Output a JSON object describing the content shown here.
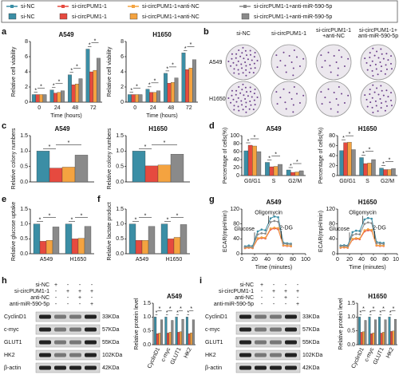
{
  "legend": [
    {
      "name": "si-NC",
      "color": "#3b8ea5"
    },
    {
      "name": "si-circPUM1-1",
      "color": "#e64a3f"
    },
    {
      "name": "si-circPUM1-1+anti-NC",
      "color": "#f4a340"
    },
    {
      "name": "si-circPUM1-1+anti-miR-590-5p",
      "color": "#8a8a8a"
    }
  ],
  "panel_labels": [
    "a",
    "b",
    "c",
    "d",
    "e",
    "f",
    "g",
    "h",
    "i"
  ],
  "significance_mark": "*",
  "colony": {
    "columns": [
      [
        "si-NC"
      ],
      [
        "si-circPUM1-1"
      ],
      [
        "si-circPUM1-1",
        "+anti-NC"
      ],
      [
        "si-circPUM1-1+",
        "anti-miR-590-5p"
      ]
    ],
    "rows": [
      "A549",
      "H1650"
    ]
  },
  "blots": [
    {
      "conditions": [
        "si-NC",
        "si-circPUM1-1",
        "anti-NC",
        "anti-miR-590-5p"
      ],
      "signs": [
        [
          "+",
          "-",
          "-",
          "-"
        ],
        [
          "-",
          "+",
          "+",
          "+"
        ],
        [
          "-",
          "-",
          "+",
          "-"
        ],
        [
          "-",
          "-",
          "-",
          "+"
        ]
      ],
      "proteins": [
        "CyclinD1",
        "c-myc",
        "GLUT1",
        "HK2",
        "β-actin"
      ],
      "sizes": [
        "33KDa",
        "57KDa",
        "55KDa",
        "102KDa",
        "42KDa"
      ]
    },
    {
      "conditions": [
        "si-NC",
        "si-circPUM1-1",
        "anti-NC",
        "anti-miR-590-5p"
      ],
      "signs": [
        [
          "+",
          "-",
          "-",
          "-"
        ],
        [
          "-",
          "+",
          "+",
          "+"
        ],
        [
          "-",
          "-",
          "+",
          "-"
        ],
        [
          "-",
          "-",
          "-",
          "+"
        ]
      ],
      "proteins": [
        "CyclinD1",
        "c-myc",
        "GLUT1",
        "HK2",
        "β-actin"
      ],
      "sizes": [
        "33KDa",
        "57KDa",
        "55KDa",
        "102KDa",
        "42KDa"
      ]
    }
  ],
  "chart_data": [
    {
      "type": "bar",
      "title": "A549",
      "xlabel": "Time (hours)",
      "ylabel": "Relative cell viability",
      "categories": [
        "0",
        "24",
        "48",
        "72"
      ],
      "series": [
        {
          "values": [
            1,
            1.6,
            3.6,
            7.0
          ]
        },
        {
          "values": [
            1,
            1.2,
            2.3,
            4.0
          ]
        },
        {
          "values": [
            1,
            1.3,
            2.4,
            4.2
          ]
        },
        {
          "values": [
            1,
            1.5,
            3.1,
            5.8
          ]
        }
      ],
      "ylim": [
        0,
        8
      ],
      "yticks": [
        0,
        2,
        4,
        6,
        8
      ]
    },
    {
      "type": "bar",
      "title": "H1650",
      "xlabel": "Time (hours)",
      "ylabel": "Relative cell viability",
      "categories": [
        "0",
        "24",
        "48",
        "72"
      ],
      "series": [
        {
          "values": [
            1,
            1.7,
            3.8,
            6.5
          ]
        },
        {
          "values": [
            1,
            1.3,
            2.5,
            4.3
          ]
        },
        {
          "values": [
            1,
            1.3,
            2.6,
            4.5
          ]
        },
        {
          "values": [
            1,
            1.5,
            3.2,
            5.6
          ]
        }
      ],
      "ylim": [
        0,
        8
      ],
      "yticks": [
        0,
        2,
        4,
        6,
        8
      ]
    },
    {
      "type": "bar",
      "title": "A549",
      "ylabel": "Relative colony numbers",
      "categories": [
        null
      ],
      "series": [
        {
          "values": [
            1.0
          ]
        },
        {
          "values": [
            0.45
          ]
        },
        {
          "values": [
            0.48
          ]
        },
        {
          "values": [
            0.87
          ]
        }
      ],
      "ylim": [
        0,
        1.5
      ],
      "yticks": [
        {
          "value": 0,
          "label": "0.0"
        },
        {
          "value": 0.5,
          "label": "0.5"
        },
        {
          "value": 1,
          "label": "1.0"
        },
        {
          "value": 1.5,
          "label": "1.5"
        }
      ]
    },
    {
      "type": "bar",
      "title": "H1650",
      "ylabel": "Relative colony numbers",
      "categories": [
        null
      ],
      "series": [
        {
          "values": [
            1.0
          ]
        },
        {
          "values": [
            0.52
          ]
        },
        {
          "values": [
            0.55
          ]
        },
        {
          "values": [
            0.9
          ]
        }
      ],
      "ylim": [
        0,
        1.5
      ],
      "yticks": [
        {
          "value": 0,
          "label": "0.0"
        },
        {
          "value": 0.5,
          "label": "0.5"
        },
        {
          "value": 1,
          "label": "1.0"
        },
        {
          "value": 1.5,
          "label": "1.5"
        }
      ]
    },
    {
      "type": "bar",
      "title": "A549",
      "ylabel": "Percentage of cells(%)",
      "categories": [
        "G0/G1",
        "S",
        "G2/M"
      ],
      "series": [
        {
          "values": [
            62,
            33,
            14
          ]
        },
        {
          "values": [
            76,
            22,
            8
          ]
        },
        {
          "values": [
            74,
            23,
            9
          ]
        },
        {
          "values": [
            60,
            28,
            12
          ]
        }
      ],
      "ylim": [
        0,
        100
      ],
      "yticks": [
        0,
        20,
        40,
        60,
        80,
        100
      ]
    },
    {
      "type": "bar",
      "title": "H1650",
      "ylabel": "Percentage of cells(%)",
      "categories": [
        "G0/G1",
        "S",
        "G2/M"
      ],
      "series": [
        {
          "values": [
            50,
            36,
            15
          ]
        },
        {
          "values": [
            66,
            24,
            12
          ]
        },
        {
          "values": [
            67,
            25,
            12
          ]
        },
        {
          "values": [
            52,
            32,
            14
          ]
        }
      ],
      "ylim": [
        0,
        80
      ],
      "yticks": [
        0,
        20,
        40,
        60,
        80
      ]
    },
    {
      "type": "bar",
      "ylabel": "Relative glucose uptake",
      "categories": [
        "A549",
        "H1650"
      ],
      "series": [
        {
          "values": [
            1.0,
            1.0
          ]
        },
        {
          "values": [
            0.42,
            0.5
          ]
        },
        {
          "values": [
            0.45,
            0.52
          ]
        },
        {
          "values": [
            0.9,
            0.92
          ]
        }
      ],
      "ylim": [
        0,
        1.5
      ],
      "yticks": [
        {
          "value": 0,
          "label": "0.0"
        },
        {
          "value": 0.5,
          "label": "0.5"
        },
        {
          "value": 1,
          "label": "1.0"
        },
        {
          "value": 1.5,
          "label": "1.5"
        }
      ]
    },
    {
      "type": "bar",
      "ylabel": "Relative lactate product",
      "categories": [
        "A549",
        "H1650"
      ],
      "series": [
        {
          "values": [
            1.0,
            1.0
          ]
        },
        {
          "values": [
            0.45,
            0.5
          ]
        },
        {
          "values": [
            0.45,
            0.55
          ]
        },
        {
          "values": [
            0.92,
            0.98
          ]
        }
      ],
      "ylim": [
        0,
        1.5
      ],
      "yticks": [
        {
          "value": 0,
          "label": "0.0"
        },
        {
          "value": 0.5,
          "label": "0.5"
        },
        {
          "value": 1,
          "label": "1.0"
        },
        {
          "value": 1.5,
          "label": "1.5"
        }
      ]
    },
    {
      "type": "line",
      "title": "A549",
      "xlabel": "Time (minutes)",
      "ylabel": "ECAR(mpH/min)",
      "annotations": [
        "Glucose",
        "Oligomycin",
        "2-DG"
      ],
      "x": [
        5,
        11,
        17,
        25,
        31,
        37,
        45,
        51,
        57,
        65,
        71,
        77
      ],
      "series": [
        {
          "values": [
            20,
            22,
            21,
            60,
            65,
            63,
            95,
            100,
            98,
            30,
            28,
            27
          ]
        },
        {
          "values": [
            15,
            16,
            15,
            40,
            42,
            41,
            65,
            68,
            66,
            22,
            21,
            20
          ]
        },
        {
          "values": [
            16,
            17,
            16,
            42,
            44,
            43,
            68,
            70,
            69,
            23,
            22,
            21
          ]
        },
        {
          "values": [
            18,
            19,
            18,
            52,
            55,
            54,
            85,
            88,
            86,
            27,
            26,
            25
          ]
        }
      ],
      "xlim": [
        0,
        100
      ],
      "xticks": [
        0,
        20,
        40,
        60,
        80,
        100
      ],
      "ylim": [
        0,
        120
      ],
      "yticks": [
        0,
        40,
        80,
        120
      ]
    },
    {
      "type": "line",
      "title": "H1650",
      "xlabel": "Time (minutes)",
      "ylabel": "ECAR(mpH/min)",
      "annotations": [
        "Glucose",
        "Oligomycin",
        "2-DG"
      ],
      "x": [
        5,
        11,
        17,
        25,
        31,
        37,
        45,
        51,
        57,
        65,
        71,
        77
      ],
      "series": [
        {
          "values": [
            22,
            23,
            22,
            58,
            62,
            61,
            92,
            96,
            94,
            32,
            30,
            29
          ]
        },
        {
          "values": [
            16,
            17,
            16,
            38,
            40,
            39,
            60,
            63,
            62,
            22,
            21,
            21
          ]
        },
        {
          "values": [
            17,
            18,
            17,
            40,
            42,
            41,
            63,
            66,
            64,
            23,
            22,
            22
          ]
        },
        {
          "values": [
            20,
            21,
            20,
            50,
            53,
            52,
            80,
            84,
            82,
            28,
            27,
            26
          ]
        }
      ],
      "xlim": [
        0,
        100
      ],
      "xticks": [
        0,
        20,
        40,
        60,
        80,
        100
      ],
      "ylim": [
        0,
        120
      ],
      "yticks": [
        0,
        40,
        80,
        120
      ]
    },
    {
      "type": "bar",
      "title": "A549",
      "ylabel": "Relative protein level",
      "categories": [
        "CyclinD1",
        "c-myc",
        "GLUT1",
        "HK2"
      ],
      "series": [
        {
          "values": [
            1,
            1,
            1,
            1
          ]
        },
        {
          "values": [
            0.4,
            0.42,
            0.45,
            0.4
          ]
        },
        {
          "values": [
            0.42,
            0.45,
            0.47,
            0.43
          ]
        },
        {
          "values": [
            0.9,
            0.88,
            0.92,
            0.9
          ]
        }
      ],
      "ylim": [
        0,
        1.5
      ],
      "yticks": [
        {
          "value": 0,
          "label": "0.0"
        },
        {
          "value": 0.5,
          "label": "0.5"
        },
        {
          "value": 1,
          "label": "1.0"
        },
        {
          "value": 1.5,
          "label": "1.5"
        }
      ]
    },
    {
      "type": "bar",
      "title": "H1650",
      "ylabel": "Relative protein level",
      "categories": [
        "CyclinD1",
        "c-myc",
        "GLUT1",
        "HK2"
      ],
      "series": [
        {
          "values": [
            1,
            1,
            1,
            1
          ]
        },
        {
          "values": [
            0.45,
            0.4,
            0.42,
            0.48
          ]
        },
        {
          "values": [
            0.47,
            0.43,
            0.45,
            0.5
          ]
        },
        {
          "values": [
            0.88,
            0.9,
            0.9,
            0.92
          ]
        }
      ],
      "ylim": [
        0,
        1.5
      ],
      "yticks": [
        {
          "value": 0,
          "label": "0.0"
        },
        {
          "value": 0.5,
          "label": "0.5"
        },
        {
          "value": 1,
          "label": "1.0"
        },
        {
          "value": 1.5,
          "label": "1.5"
        }
      ]
    }
  ]
}
